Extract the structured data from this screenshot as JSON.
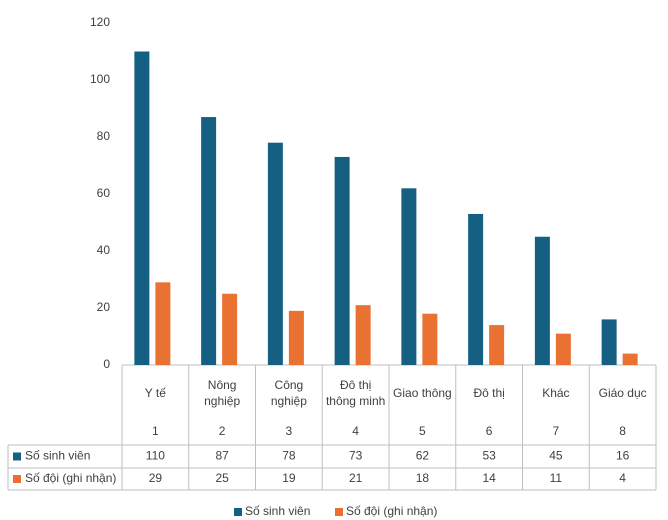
{
  "chart_data": {
    "type": "bar",
    "categories": [
      "Y tế",
      "Nông nghiệp",
      "Công nghiệp",
      "Đô thị thông minh",
      "Giao thông",
      "Đô thị",
      "Khác",
      "Giáo dục"
    ],
    "category_numbers": [
      1,
      2,
      3,
      4,
      5,
      6,
      7,
      8
    ],
    "series": [
      {
        "name": "Số sinh viên",
        "color": "#156082",
        "values": [
          110,
          87,
          78,
          73,
          62,
          53,
          45,
          16
        ]
      },
      {
        "name": "Số đội (ghi nhận)",
        "color": "#e97132",
        "values": [
          29,
          25,
          19,
          21,
          18,
          14,
          11,
          4
        ]
      }
    ],
    "ylim": [
      0,
      120
    ],
    "yticks": [
      0,
      20,
      40,
      60,
      80,
      100,
      120
    ],
    "grid": false,
    "legend": "bottom",
    "data_table": true
  }
}
